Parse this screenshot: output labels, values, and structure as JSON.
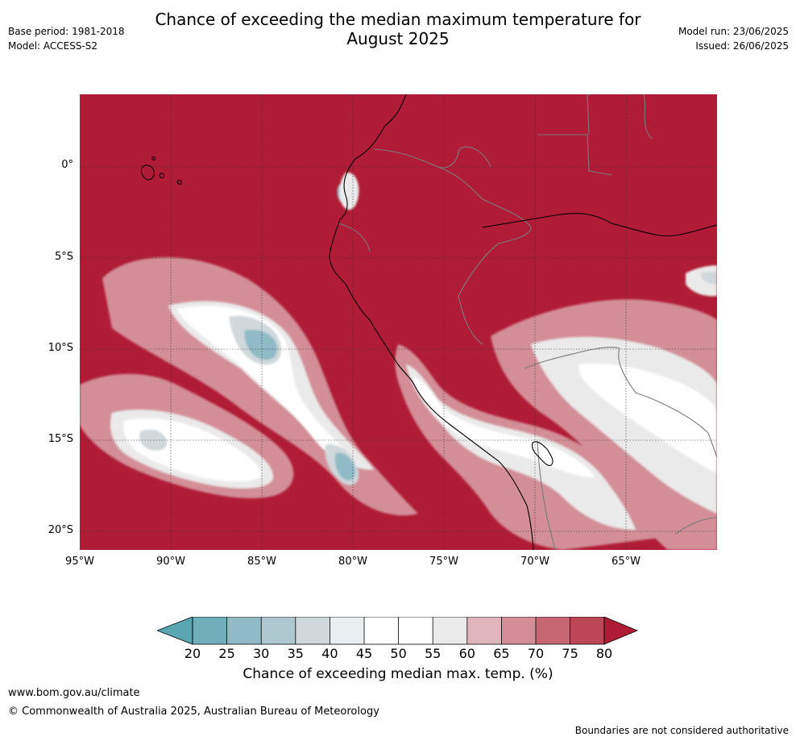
{
  "header": {
    "title_line1": "Chance of exceeding the median maximum temperature for",
    "title_line2": "August 2025",
    "base_period": "Base period: 1981-2018",
    "model": "Model: ACCESS-S2",
    "model_run": "Model run: 23/06/2025",
    "issued": "Issued: 26/06/2025"
  },
  "map": {
    "lat_labels": [
      "0°",
      "5°S",
      "10°S",
      "15°S",
      "20°S"
    ],
    "lon_labels": [
      "95°W",
      "90°W",
      "85°W",
      "80°W",
      "75°W",
      "70°W",
      "65°W"
    ],
    "colors": {
      "ocean_background": "#b01c36",
      "coastline": "#000000",
      "borders": "#7a7a7a",
      "gridlines": "#333333"
    }
  },
  "legend": {
    "ticks": [
      "20",
      "25",
      "30",
      "35",
      "40",
      "45",
      "50",
      "55",
      "60",
      "65",
      "70",
      "75",
      "80"
    ],
    "label": "Chance of exceeding median max. temp. (%)",
    "colors": [
      "#5aa6b2",
      "#70aebb",
      "#8fbac6",
      "#adc8cf",
      "#d0d8db",
      "#e9eef1",
      "#ffffff",
      "#ffffff",
      "#ebeaea",
      "#e0b6bc",
      "#d38e98",
      "#c66672",
      "#bc4655",
      "#b01c36"
    ]
  },
  "footer": {
    "url": "www.bom.gov.au/climate",
    "copyright": "© Commonwealth of Australia 2025, Australian Bureau of Meteorology",
    "disclaimer": "Boundaries are not considered authoritative"
  }
}
